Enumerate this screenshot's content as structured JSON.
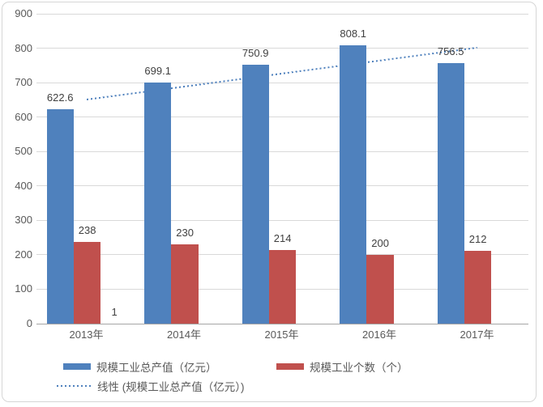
{
  "chart_data": {
    "type": "bar",
    "title": "",
    "categories": [
      "2013年",
      "2014年",
      "2015年",
      "2016年",
      "2017年"
    ],
    "series": [
      {
        "name": "规模工业总产值（亿元）",
        "color": "#4F81BD",
        "values": [
          622.6,
          699.1,
          750.9,
          808.1,
          756.5
        ],
        "data_labels": [
          "622.6",
          "699.1",
          "750.9",
          "808.1",
          "756.5"
        ]
      },
      {
        "name": "规模工业个数（个）",
        "color": "#C0504D",
        "values": [
          238,
          230,
          214,
          200,
          212
        ],
        "data_labels": [
          "238",
          "230",
          "214",
          "200",
          "212"
        ]
      }
    ],
    "trendline": {
      "name": "线性 (规模工业总产值（亿元）)",
      "based_on_series": "规模工业总产值（亿元）",
      "color": "#4F81BD",
      "style": "dotted"
    },
    "annotations": [
      {
        "text": "1",
        "category_index": 0
      }
    ],
    "y_axis": {
      "min": 0,
      "max": 900,
      "step": 100,
      "tick_labels": [
        "0",
        "100",
        "200",
        "300",
        "400",
        "500",
        "600",
        "700",
        "800",
        "900"
      ]
    },
    "x_axis": {
      "tick_labels": [
        "2013年",
        "2014年",
        "2015年",
        "2016年",
        "2017年"
      ]
    },
    "legend_position": "bottom",
    "grid": true,
    "colors": {
      "gridline": "#D9D9D9",
      "axis_line": "#A6A6A6",
      "axis_text": "#595959",
      "data_label_text": "#3F3F3F",
      "frame_border": "#D6D6D6",
      "background": "#FFFFFF"
    }
  }
}
